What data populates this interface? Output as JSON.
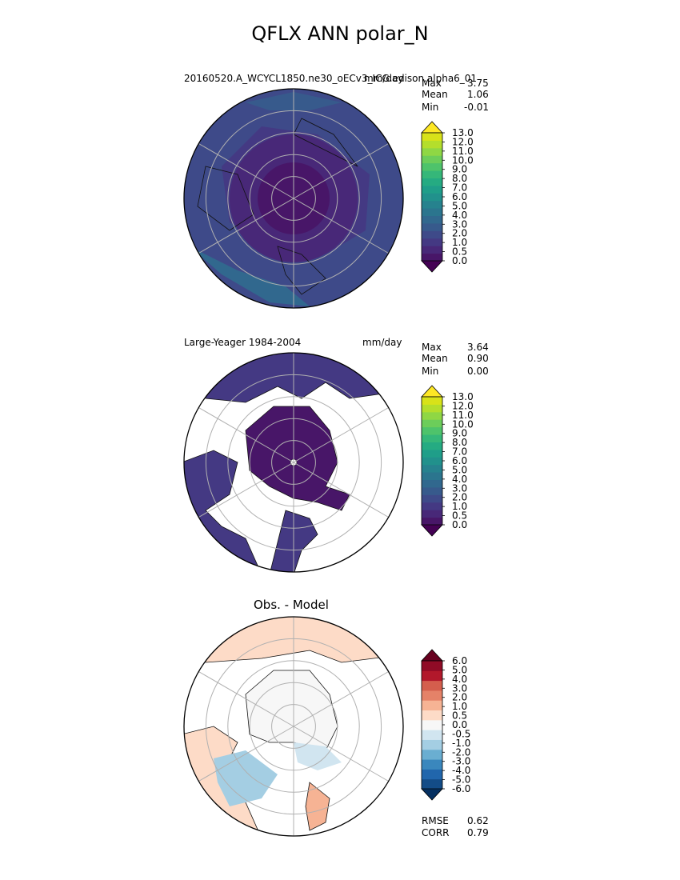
{
  "title": "QFLX ANN polar_N",
  "panels": [
    {
      "left_label": "20160520.A_WCYCL1850.ne30_oECv3_ICG.edison.alpha6_01",
      "units": "mm/day",
      "stats": [
        {
          "label": "Max",
          "value": "3.75"
        },
        {
          "label": "Mean",
          "value": "1.06"
        },
        {
          "label": "Min",
          "value": "-0.01"
        }
      ]
    },
    {
      "left_label": "Large-Yeager 1984-2004",
      "units": "mm/day",
      "stats": [
        {
          "label": "Max",
          "value": "3.64"
        },
        {
          "label": "Mean",
          "value": "0.90"
        },
        {
          "label": "Min",
          "value": "0.00"
        }
      ]
    },
    {
      "subtitle": "Obs. - Model",
      "stats": [
        {
          "label": "RMSE",
          "value": "0.62"
        },
        {
          "label": "CORR",
          "value": "0.79"
        }
      ]
    }
  ],
  "colorbars": {
    "sequential": {
      "ticks": [
        "0.0",
        "0.5",
        "1.0",
        "2.0",
        "3.0",
        "4.0",
        "5.0",
        "6.0",
        "7.0",
        "8.0",
        "9.0",
        "10.0",
        "11.0",
        "12.0",
        "13.0"
      ],
      "colors": [
        "#440154",
        "#481668",
        "#482878",
        "#443983",
        "#3e4a89",
        "#375a8c",
        "#31688e",
        "#2b758e",
        "#26828e",
        "#21918c",
        "#1f9e89",
        "#25ab82",
        "#35b779",
        "#4ec36b",
        "#6ccd5a",
        "#8fd744",
        "#b4de2c",
        "#d8e219",
        "#fde725"
      ]
    },
    "diverging": {
      "ticks": [
        "-6.0",
        "-5.0",
        "-4.0",
        "-3.0",
        "-2.0",
        "-1.0",
        "-0.5",
        "0.0",
        "0.5",
        "1.0",
        "2.0",
        "3.0",
        "4.0",
        "5.0",
        "6.0"
      ],
      "colors": [
        "#053061",
        "#134c87",
        "#2166ac",
        "#3a87bd",
        "#6aaed1",
        "#a4cee3",
        "#d1e5f0",
        "#f7f7f7",
        "#fddbc7",
        "#f6b394",
        "#e58268",
        "#d45e4d",
        "#b2182b",
        "#900b26",
        "#67001f"
      ]
    }
  },
  "chart_data": [
    {
      "type": "heatmap",
      "projection": "north-polar-stereographic",
      "field": "QFLX",
      "season": "ANN",
      "units": "mm/day",
      "levels": [
        0.0,
        0.5,
        1.0,
        2.0,
        3.0,
        4.0,
        5.0,
        6.0,
        7.0,
        8.0,
        9.0,
        10.0,
        11.0,
        12.0,
        13.0
      ],
      "colormap": "viridis",
      "stats": {
        "max": 3.75,
        "mean": 1.06,
        "min": -0.01
      },
      "grid": true
    },
    {
      "type": "heatmap",
      "projection": "north-polar-stereographic",
      "field": "QFLX",
      "season": "ANN",
      "units": "mm/day",
      "levels": [
        0.0,
        0.5,
        1.0,
        2.0,
        3.0,
        4.0,
        5.0,
        6.0,
        7.0,
        8.0,
        9.0,
        10.0,
        11.0,
        12.0,
        13.0
      ],
      "colormap": "viridis",
      "stats": {
        "max": 3.64,
        "mean": 0.9,
        "min": 0.0
      },
      "masked_over_land": true,
      "grid": true
    },
    {
      "type": "heatmap",
      "projection": "north-polar-stereographic",
      "field": "QFLX difference",
      "levels": [
        -6.0,
        -5.0,
        -4.0,
        -3.0,
        -2.0,
        -1.0,
        -0.5,
        0.0,
        0.5,
        1.0,
        2.0,
        3.0,
        4.0,
        5.0,
        6.0
      ],
      "colormap": "diverging red-blue",
      "stats": {
        "rmse": 0.62,
        "corr": 0.79
      },
      "grid": true
    }
  ]
}
